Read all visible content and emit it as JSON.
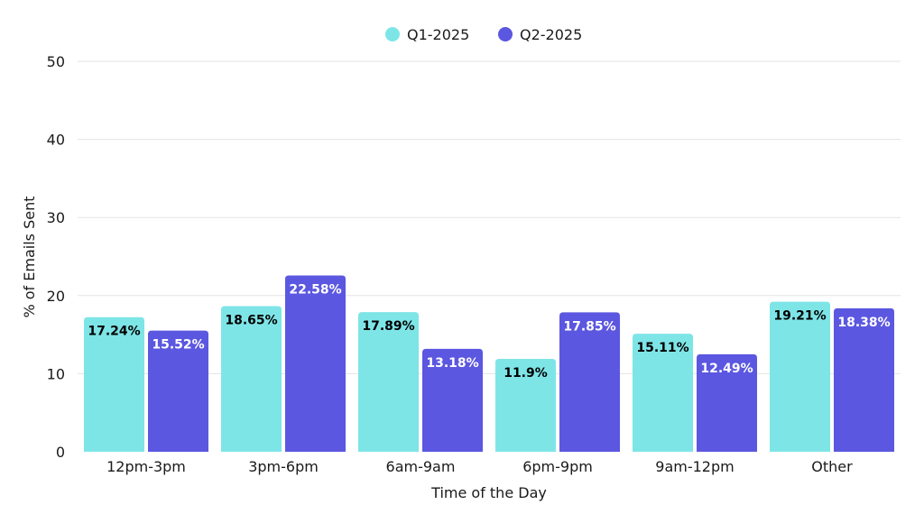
{
  "chart_data": {
    "type": "bar",
    "categories": [
      "12pm-3pm",
      "3pm-6pm",
      "6am-9am",
      "6pm-9pm",
      "9am-12pm",
      "Other"
    ],
    "series": [
      {
        "name": "Q1-2025",
        "color": "#7ee5e7",
        "label_color": "#000000",
        "values": [
          17.24,
          18.65,
          17.89,
          11.9,
          15.11,
          19.21
        ],
        "labels": [
          "17.24%",
          "18.65%",
          "17.89%",
          "11.9%",
          "15.11%",
          "19.21%"
        ]
      },
      {
        "name": "Q2-2025",
        "color": "#5b57e0",
        "label_color": "#ffffff",
        "values": [
          15.52,
          22.58,
          13.18,
          17.85,
          12.49,
          18.38
        ],
        "labels": [
          "15.52%",
          "22.58%",
          "13.18%",
          "17.85%",
          "12.49%",
          "18.38%"
        ]
      }
    ],
    "xlabel": "Time of the Day",
    "ylabel": "% of Emails Sent",
    "ylim": [
      0,
      50
    ],
    "yticks": [
      "0",
      "10",
      "20",
      "30",
      "40",
      "50"
    ],
    "grid": true,
    "legend_position": "top-center"
  }
}
